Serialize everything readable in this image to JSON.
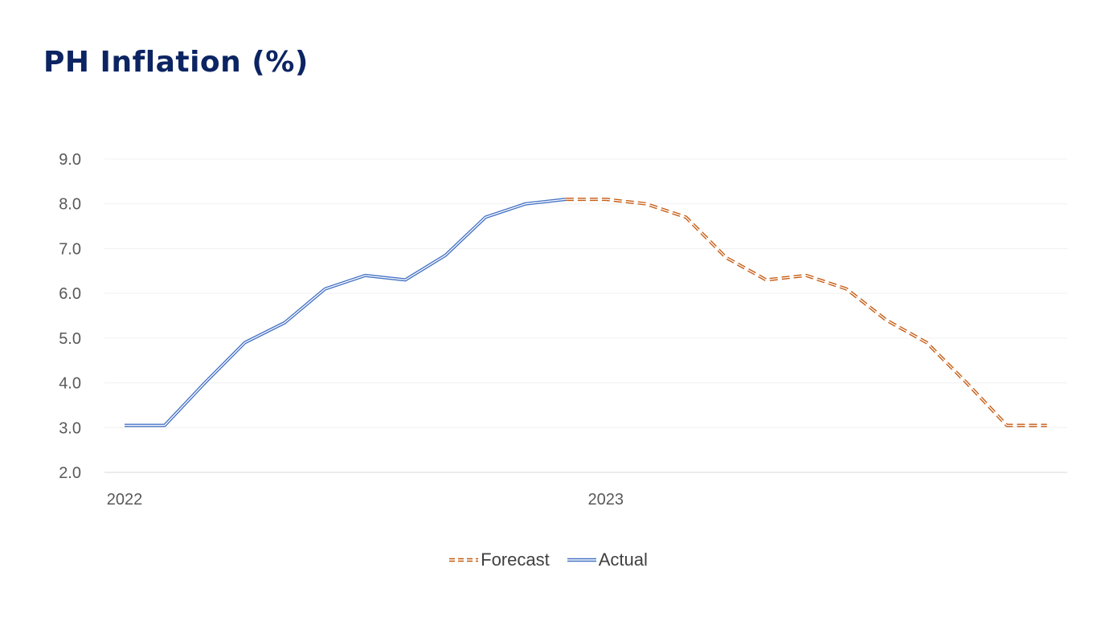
{
  "title": "PH Inflation (%)",
  "chart_data": {
    "type": "line",
    "title": "",
    "xlabel": "",
    "ylabel": "",
    "ylim": [
      2.0,
      9.0
    ],
    "yticks": [
      "2.0",
      "3.0",
      "4.0",
      "5.0",
      "6.0",
      "7.0",
      "8.0",
      "9.0"
    ],
    "year_labels": [
      {
        "label": "2022",
        "index": 0
      },
      {
        "label": "2023",
        "index": 12
      }
    ],
    "grid": true,
    "legend_position": "bottom",
    "series": [
      {
        "name": "Forecast",
        "color": "#c55a11",
        "style": "dashed-double",
        "x": [
          11,
          12,
          13,
          14,
          15,
          16,
          17,
          18,
          19,
          20,
          21,
          22,
          23
        ],
        "values": [
          8.1,
          8.1,
          8.0,
          7.7,
          6.8,
          6.3,
          6.4,
          6.1,
          5.4,
          4.9,
          4.0,
          3.05,
          3.05
        ]
      },
      {
        "name": "Actual",
        "color": "#4472c4",
        "style": "solid-double",
        "x": [
          0,
          1,
          2,
          3,
          4,
          5,
          6,
          7,
          8,
          9,
          10,
          11
        ],
        "values": [
          3.05,
          3.05,
          4.0,
          4.9,
          5.35,
          6.1,
          6.4,
          6.3,
          6.85,
          7.7,
          8.0,
          8.1
        ]
      }
    ]
  }
}
